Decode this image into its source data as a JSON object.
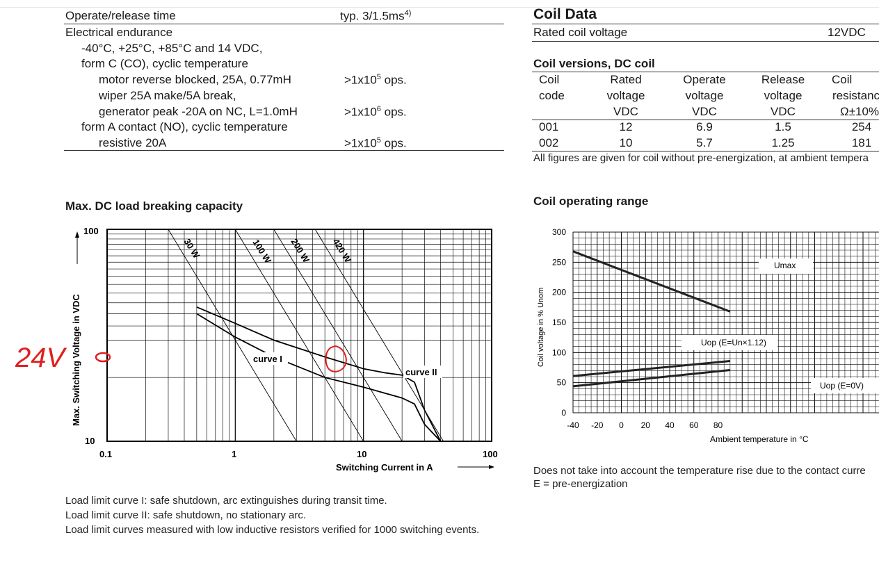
{
  "left_spec": {
    "operate_release": {
      "label": "Operate/release time",
      "value": "typ. 3/1.5ms",
      "sup": "4)"
    },
    "endurance_title": "Electrical endurance",
    "cond1": "-40°C, +25°C, +85°C and 14 VDC,",
    "cond2": "form C (CO), cyclic temperature",
    "motor": {
      "label": "motor reverse blocked, 25A,  0.77mH",
      "value": ">1x10",
      "exp": "5",
      "unit": " ops."
    },
    "wiper": "wiper 25A make/5A break,",
    "generator": {
      "label": "generator peak -20A on NC, L=1.0mH",
      "value": ">1x10",
      "exp": "6",
      "unit": " ops."
    },
    "formA": "form A contact (NO), cyclic temperature",
    "resistive": {
      "label": "resistive 20A",
      "value": ">1x10",
      "exp": "5",
      "unit": " ops."
    }
  },
  "coil_data": {
    "title": "Coil Data",
    "rated_label": "Rated coil voltage",
    "rated_value": "12VDC",
    "versions_title": "Coil versions, DC coil",
    "headers": [
      [
        "Coil",
        "code",
        ""
      ],
      [
        "Rated",
        "voltage",
        "VDC"
      ],
      [
        "Operate",
        "voltage",
        "VDC"
      ],
      [
        "Release",
        "voltage",
        "VDC"
      ],
      [
        "Coil",
        "resistanc",
        "Ω±10%"
      ]
    ],
    "rows": [
      [
        "001",
        "12",
        "6.9",
        "1.5",
        "254"
      ],
      [
        "002",
        "10",
        "5.7",
        "1.25",
        "181"
      ]
    ],
    "footnote": "All figures are given for coil without pre-energization, at ambient tempera"
  },
  "dc_chart": {
    "title": "Max. DC load breaking capacity",
    "ylabel": "Max. Switching Voltage in VDC",
    "xlabel": "Switching Current in A",
    "x_ticks": [
      "0.1",
      "1",
      "10",
      "100"
    ],
    "y_ticks": [
      "100",
      "10"
    ],
    "power_labels": [
      "30 W",
      "100 W",
      "200 W",
      "420 W"
    ],
    "curve_labels": [
      "curve I",
      "curve II"
    ],
    "annotation": "24V",
    "notes": [
      "Load limit curve I: safe shutdown, arc extinguishes during transit time.",
      "Load limit curve II: safe shutdown, no stationary arc.",
      "Load limit curves measured with low inductive resistors verified for 1000 switching events."
    ]
  },
  "coil_chart": {
    "title": "Coil operating range",
    "ylabel": "Coil voltage in % Unom",
    "xlabel": "Ambient temperature in °C",
    "y_ticks": [
      "300",
      "250",
      "200",
      "150",
      "100",
      "50",
      "0"
    ],
    "x_ticks": [
      "-40",
      "-20",
      "0",
      "20",
      "40",
      "60",
      "80"
    ],
    "labels": {
      "umax": "Umax",
      "uop_e": "Uop (E=Un×1.12)",
      "uop_0": "Uop (E=0V)"
    },
    "notes": [
      "Does not take into account the temperature rise due to the contact curre",
      "E = pre-energization"
    ]
  },
  "chart_data": [
    {
      "type": "line",
      "title": "Max. DC load breaking capacity",
      "xlabel": "Switching Current in A",
      "ylabel": "Max. Switching Voltage in VDC",
      "x_scale": "log",
      "y_scale": "log",
      "xlim": [
        0.1,
        100
      ],
      "ylim": [
        10,
        100
      ],
      "grid": true,
      "series": [
        {
          "name": "curve I",
          "points": [
            [
              0.5,
              40
            ],
            [
              1,
              31
            ],
            [
              2,
              25
            ],
            [
              5,
              20
            ],
            [
              10,
              18
            ],
            [
              20,
              16
            ],
            [
              25,
              15
            ],
            [
              30,
              12
            ],
            [
              40,
              10
            ]
          ]
        },
        {
          "name": "curve II",
          "points": [
            [
              0.5,
              43
            ],
            [
              1,
              36
            ],
            [
              2,
              30
            ],
            [
              5,
              25
            ],
            [
              10,
              22
            ],
            [
              15,
              21
            ],
            [
              20,
              20.5
            ],
            [
              25,
              19
            ],
            [
              30,
              14
            ],
            [
              40,
              10
            ]
          ]
        },
        {
          "name": "30 W",
          "points": [
            [
              0.3,
              100
            ],
            [
              3,
              10
            ]
          ]
        },
        {
          "name": "100 W",
          "points": [
            [
              1,
              100
            ],
            [
              10,
              10
            ]
          ]
        },
        {
          "name": "200 W",
          "points": [
            [
              2,
              100
            ],
            [
              20,
              10
            ]
          ]
        },
        {
          "name": "420 W",
          "points": [
            [
              4.2,
              100
            ],
            [
              42,
              10
            ]
          ]
        }
      ]
    },
    {
      "type": "line",
      "title": "Coil operating range",
      "xlabel": "Ambient temperature in °C",
      "ylabel": "Coil voltage in % Unom",
      "xlim": [
        -40,
        90
      ],
      "ylim": [
        0,
        300
      ],
      "grid": true,
      "series": [
        {
          "name": "Umax",
          "x": [
            -40,
            90
          ],
          "y": [
            268,
            168
          ]
        },
        {
          "name": "Uop (E=Un×1.12)",
          "x": [
            -40,
            90
          ],
          "y": [
            61,
            86
          ]
        },
        {
          "name": "Uop (E=0V)",
          "x": [
            -40,
            90
          ],
          "y": [
            44,
            71
          ]
        }
      ]
    }
  ]
}
